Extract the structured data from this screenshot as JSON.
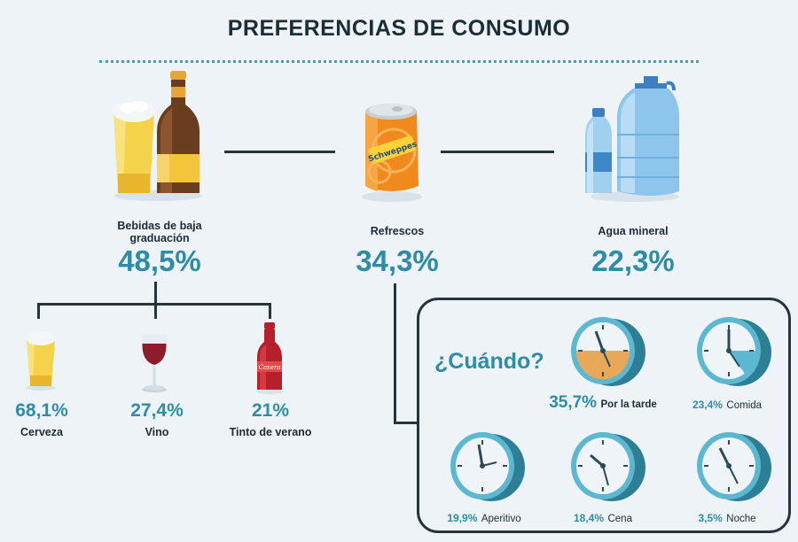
{
  "title": "PREFERENCIAS DE CONSUMO",
  "categories": [
    {
      "label": "Bebidas de baja graduación",
      "value": "48,5%"
    },
    {
      "label": "Refrescos",
      "value": "34,3%"
    },
    {
      "label": "Agua mineral",
      "value": "22,3%"
    }
  ],
  "subcategories": [
    {
      "label": "Cerveza",
      "value": "68,1%"
    },
    {
      "label": "Vino",
      "value": "27,4%"
    },
    {
      "label": "Tinto de verano",
      "value": "21%"
    }
  ],
  "when": {
    "heading": "¿Cuándo?",
    "items": [
      {
        "value": "35,7%",
        "label": "Por la tarde"
      },
      {
        "value": "23,4%",
        "label": "Comida"
      },
      {
        "value": "19,9%",
        "label": "Aperitivo"
      },
      {
        "value": "18,4%",
        "label": "Cena"
      },
      {
        "value": "3,5%",
        "label": "Noche"
      }
    ]
  },
  "can_label": "Schweppes",
  "bottle_label": "Casera",
  "colors": {
    "accent": "#2f8ca5",
    "line": "#26353c",
    "clock_face": "#5bb8d0",
    "highlight": "#e8a857"
  }
}
